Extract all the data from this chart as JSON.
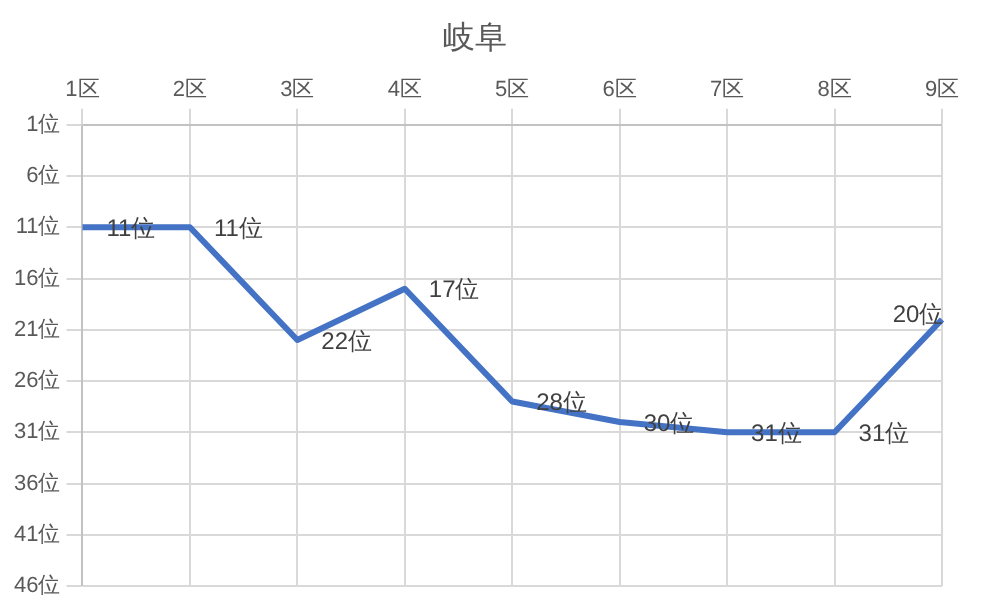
{
  "chart_data": {
    "type": "line",
    "title": "岐阜",
    "categories": [
      "1区",
      "2区",
      "3区",
      "4区",
      "5区",
      "6区",
      "7区",
      "8区",
      "9区"
    ],
    "series": [
      {
        "color": "#4472c4",
        "values": [
          11,
          11,
          22,
          17,
          28,
          30,
          31,
          31,
          20
        ],
        "value_labels": [
          "11位",
          "11位",
          "22位",
          "17位",
          "28位",
          "30位",
          "31位",
          "31位",
          "20位"
        ]
      }
    ],
    "ylim": [
      46,
      1
    ],
    "yticks": [
      {
        "value": 1,
        "label": "1位"
      },
      {
        "value": 6,
        "label": "6位"
      },
      {
        "value": 11,
        "label": "11位"
      },
      {
        "value": 16,
        "label": "16位"
      },
      {
        "value": 21,
        "label": "21位"
      },
      {
        "value": 26,
        "label": "26位"
      },
      {
        "value": 31,
        "label": "31位"
      },
      {
        "value": 36,
        "label": "36位"
      },
      {
        "value": 41,
        "label": "41位"
      },
      {
        "value": 46,
        "label": "46位"
      }
    ],
    "grid": true,
    "legend": false,
    "marker": "none",
    "line_style": "solid"
  }
}
